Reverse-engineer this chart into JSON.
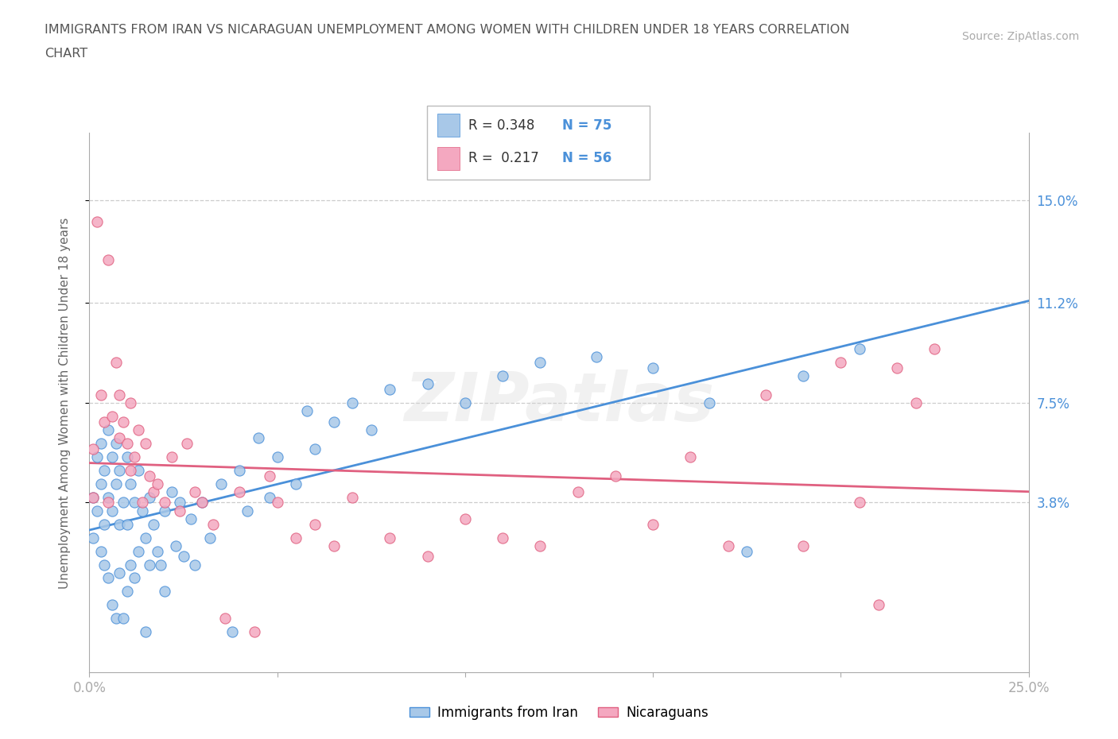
{
  "title_line1": "IMMIGRANTS FROM IRAN VS NICARAGUAN UNEMPLOYMENT AMONG WOMEN WITH CHILDREN UNDER 18 YEARS CORRELATION",
  "title_line2": "CHART",
  "source_text": "Source: ZipAtlas.com",
  "ylabel": "Unemployment Among Women with Children Under 18 years",
  "xlim": [
    0.0,
    0.25
  ],
  "ylim": [
    -0.025,
    0.175
  ],
  "R_iran": 0.348,
  "N_iran": 75,
  "R_nica": 0.217,
  "N_nica": 56,
  "color_iran": "#a8c8e8",
  "color_nica": "#f4a8c0",
  "line_color_iran": "#4a90d9",
  "line_color_nica": "#e06080",
  "legend_iran": "Immigrants from Iran",
  "legend_nica": "Nicaraguans",
  "ytick_pos": [
    0.038,
    0.075,
    0.112,
    0.15
  ],
  "ytick_labels": [
    "3.8%",
    "7.5%",
    "11.2%",
    "15.0%"
  ],
  "iran_x": [
    0.001,
    0.001,
    0.002,
    0.002,
    0.003,
    0.003,
    0.003,
    0.004,
    0.004,
    0.004,
    0.005,
    0.005,
    0.005,
    0.006,
    0.006,
    0.006,
    0.007,
    0.007,
    0.007,
    0.008,
    0.008,
    0.008,
    0.009,
    0.009,
    0.01,
    0.01,
    0.01,
    0.011,
    0.011,
    0.012,
    0.012,
    0.013,
    0.013,
    0.014,
    0.015,
    0.015,
    0.016,
    0.016,
    0.017,
    0.018,
    0.019,
    0.02,
    0.02,
    0.022,
    0.023,
    0.024,
    0.025,
    0.027,
    0.028,
    0.03,
    0.032,
    0.035,
    0.038,
    0.04,
    0.042,
    0.045,
    0.048,
    0.05,
    0.055,
    0.058,
    0.06,
    0.065,
    0.07,
    0.075,
    0.08,
    0.09,
    0.1,
    0.11,
    0.12,
    0.135,
    0.15,
    0.165,
    0.175,
    0.19,
    0.205
  ],
  "iran_y": [
    0.04,
    0.025,
    0.055,
    0.035,
    0.06,
    0.045,
    0.02,
    0.05,
    0.03,
    0.015,
    0.065,
    0.04,
    0.01,
    0.055,
    0.035,
    0.0,
    0.06,
    0.045,
    -0.005,
    0.05,
    0.03,
    0.012,
    0.038,
    -0.005,
    0.055,
    0.03,
    0.005,
    0.045,
    0.015,
    0.038,
    0.01,
    0.05,
    0.02,
    0.035,
    0.025,
    -0.01,
    0.04,
    0.015,
    0.03,
    0.02,
    0.015,
    0.035,
    0.005,
    0.042,
    0.022,
    0.038,
    0.018,
    0.032,
    0.015,
    0.038,
    0.025,
    0.045,
    -0.01,
    0.05,
    0.035,
    0.062,
    0.04,
    0.055,
    0.045,
    0.072,
    0.058,
    0.068,
    0.075,
    0.065,
    0.08,
    0.082,
    0.075,
    0.085,
    0.09,
    0.092,
    0.088,
    0.075,
    0.02,
    0.085,
    0.095
  ],
  "nica_x": [
    0.001,
    0.001,
    0.002,
    0.003,
    0.004,
    0.005,
    0.005,
    0.006,
    0.007,
    0.008,
    0.008,
    0.009,
    0.01,
    0.011,
    0.011,
    0.012,
    0.013,
    0.014,
    0.015,
    0.016,
    0.017,
    0.018,
    0.02,
    0.022,
    0.024,
    0.026,
    0.028,
    0.03,
    0.033,
    0.036,
    0.04,
    0.044,
    0.048,
    0.05,
    0.055,
    0.06,
    0.065,
    0.07,
    0.08,
    0.09,
    0.1,
    0.11,
    0.12,
    0.13,
    0.14,
    0.15,
    0.16,
    0.17,
    0.18,
    0.19,
    0.2,
    0.205,
    0.21,
    0.215,
    0.22,
    0.225
  ],
  "nica_y": [
    0.058,
    0.04,
    0.142,
    0.078,
    0.068,
    0.128,
    0.038,
    0.07,
    0.09,
    0.062,
    0.078,
    0.068,
    0.06,
    0.075,
    0.05,
    0.055,
    0.065,
    0.038,
    0.06,
    0.048,
    0.042,
    0.045,
    0.038,
    0.055,
    0.035,
    0.06,
    0.042,
    0.038,
    0.03,
    -0.005,
    0.042,
    -0.01,
    0.048,
    0.038,
    0.025,
    0.03,
    0.022,
    0.04,
    0.025,
    0.018,
    0.032,
    0.025,
    0.022,
    0.042,
    0.048,
    0.03,
    0.055,
    0.022,
    0.078,
    0.022,
    0.09,
    0.038,
    0.0,
    0.088,
    0.075,
    0.095
  ]
}
